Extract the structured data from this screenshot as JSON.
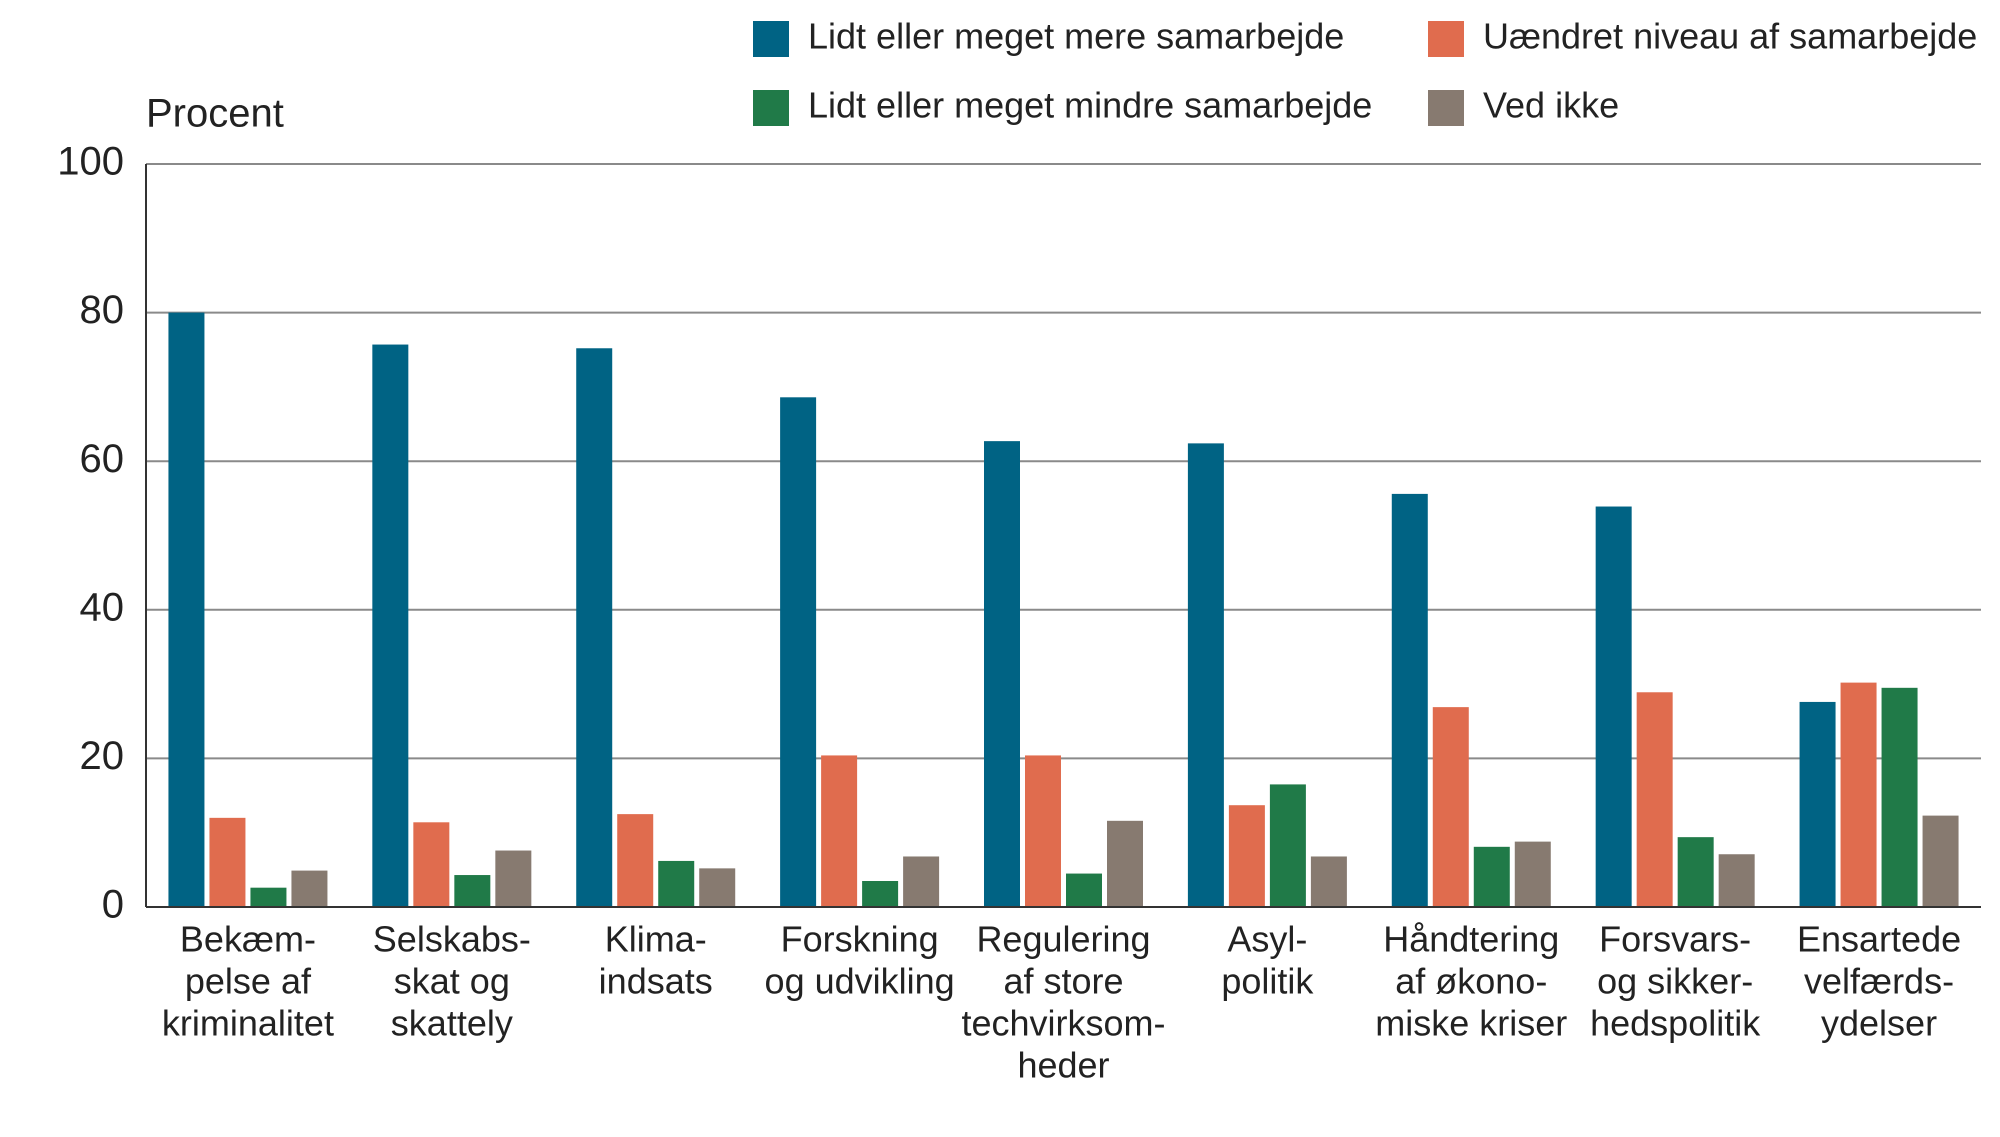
{
  "chart_data": {
    "type": "bar",
    "y_axis_label": "Procent",
    "categories": [
      [
        "Bekæm-",
        "pelse af",
        "kriminalitet"
      ],
      [
        "Selskabs-",
        "skat og",
        "skattely"
      ],
      [
        "Klima-",
        "indsats"
      ],
      [
        "Forskning",
        "og udvikling"
      ],
      [
        "Regulering",
        "af store",
        "techvirksom-",
        "heder"
      ],
      [
        "Asyl-",
        "politik"
      ],
      [
        "Håndtering",
        "af økono-",
        "miske kriser"
      ],
      [
        "Forsvars-",
        "og sikker-",
        "hedspolitik"
      ],
      [
        "Ensartede",
        "velfærds-",
        "ydelser"
      ]
    ],
    "series": [
      {
        "name": "Lidt eller meget mere samarbejde",
        "color": "#006384",
        "values": [
          80,
          75.7,
          75.2,
          68.6,
          62.7,
          62.4,
          55.6,
          53.9,
          27.6
        ]
      },
      {
        "name": "Uændret niveau af samarbejde",
        "color": "#e06c4e",
        "values": [
          12.0,
          11.4,
          12.5,
          20.4,
          20.4,
          13.7,
          26.9,
          28.9,
          30.2
        ]
      },
      {
        "name": "Lidt eller meget mindre samarbejde",
        "color": "#207a48",
        "values": [
          2.6,
          4.3,
          6.2,
          3.5,
          4.5,
          16.5,
          8.1,
          9.4,
          29.5
        ]
      },
      {
        "name": "Ved ikke",
        "color": "#877a70",
        "values": [
          4.9,
          7.6,
          5.2,
          6.8,
          11.6,
          6.8,
          8.8,
          7.1,
          12.3
        ]
      }
    ],
    "ylim": [
      0,
      100
    ],
    "yticks": [
      0,
      20,
      40,
      60,
      80,
      100
    ],
    "grid": true
  }
}
